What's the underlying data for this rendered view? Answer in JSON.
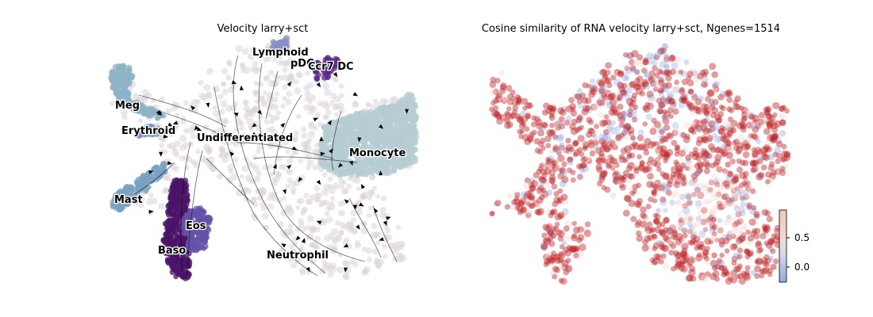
{
  "chart_data": [
    {
      "type": "scatter",
      "title": "Velocity larry+sct",
      "xlabel": "",
      "ylabel": "",
      "grid": false,
      "axes": false,
      "cell_type_labels": [
        "Lymphoid",
        "pDC",
        "Ccr7 DC",
        "Meg",
        "Erythroid",
        "Undifferentiated",
        "Monocyte",
        "Mast",
        "Eos",
        "Baso",
        "Neutrophil"
      ],
      "colors": {
        "Undifferentiated": "#ddd3d8",
        "Monocyte": "#b5ccd3",
        "Meg": "#8db3c6",
        "Erythroid": "#7a8fbd",
        "Mast": "#7aa2c2",
        "Eos": "#6451a8",
        "Baso": "#4b1468",
        "Lymphoid": "#8a8fc4",
        "pDC": "#6a5ea8",
        "Ccr7 DC": "#5a2a8a",
        "streamlines": "#000000"
      }
    },
    {
      "type": "scatter",
      "title": "Cosine similarity of RNA velocity larry+sct, Ngenes=1514",
      "xlabel": "",
      "ylabel": "",
      "grid": false,
      "axes": false,
      "colormap": "coolwarm",
      "colorbar": {
        "range": [
          -0.25,
          0.95
        ],
        "ticks": [
          0.0,
          0.5
        ],
        "tick_labels": [
          "0.0",
          "0.5"
        ],
        "placement": "bottom-right"
      },
      "colors": {
        "high": "#c0272d",
        "mid": "#f3d5ca",
        "low": "#8ea6df"
      }
    }
  ]
}
